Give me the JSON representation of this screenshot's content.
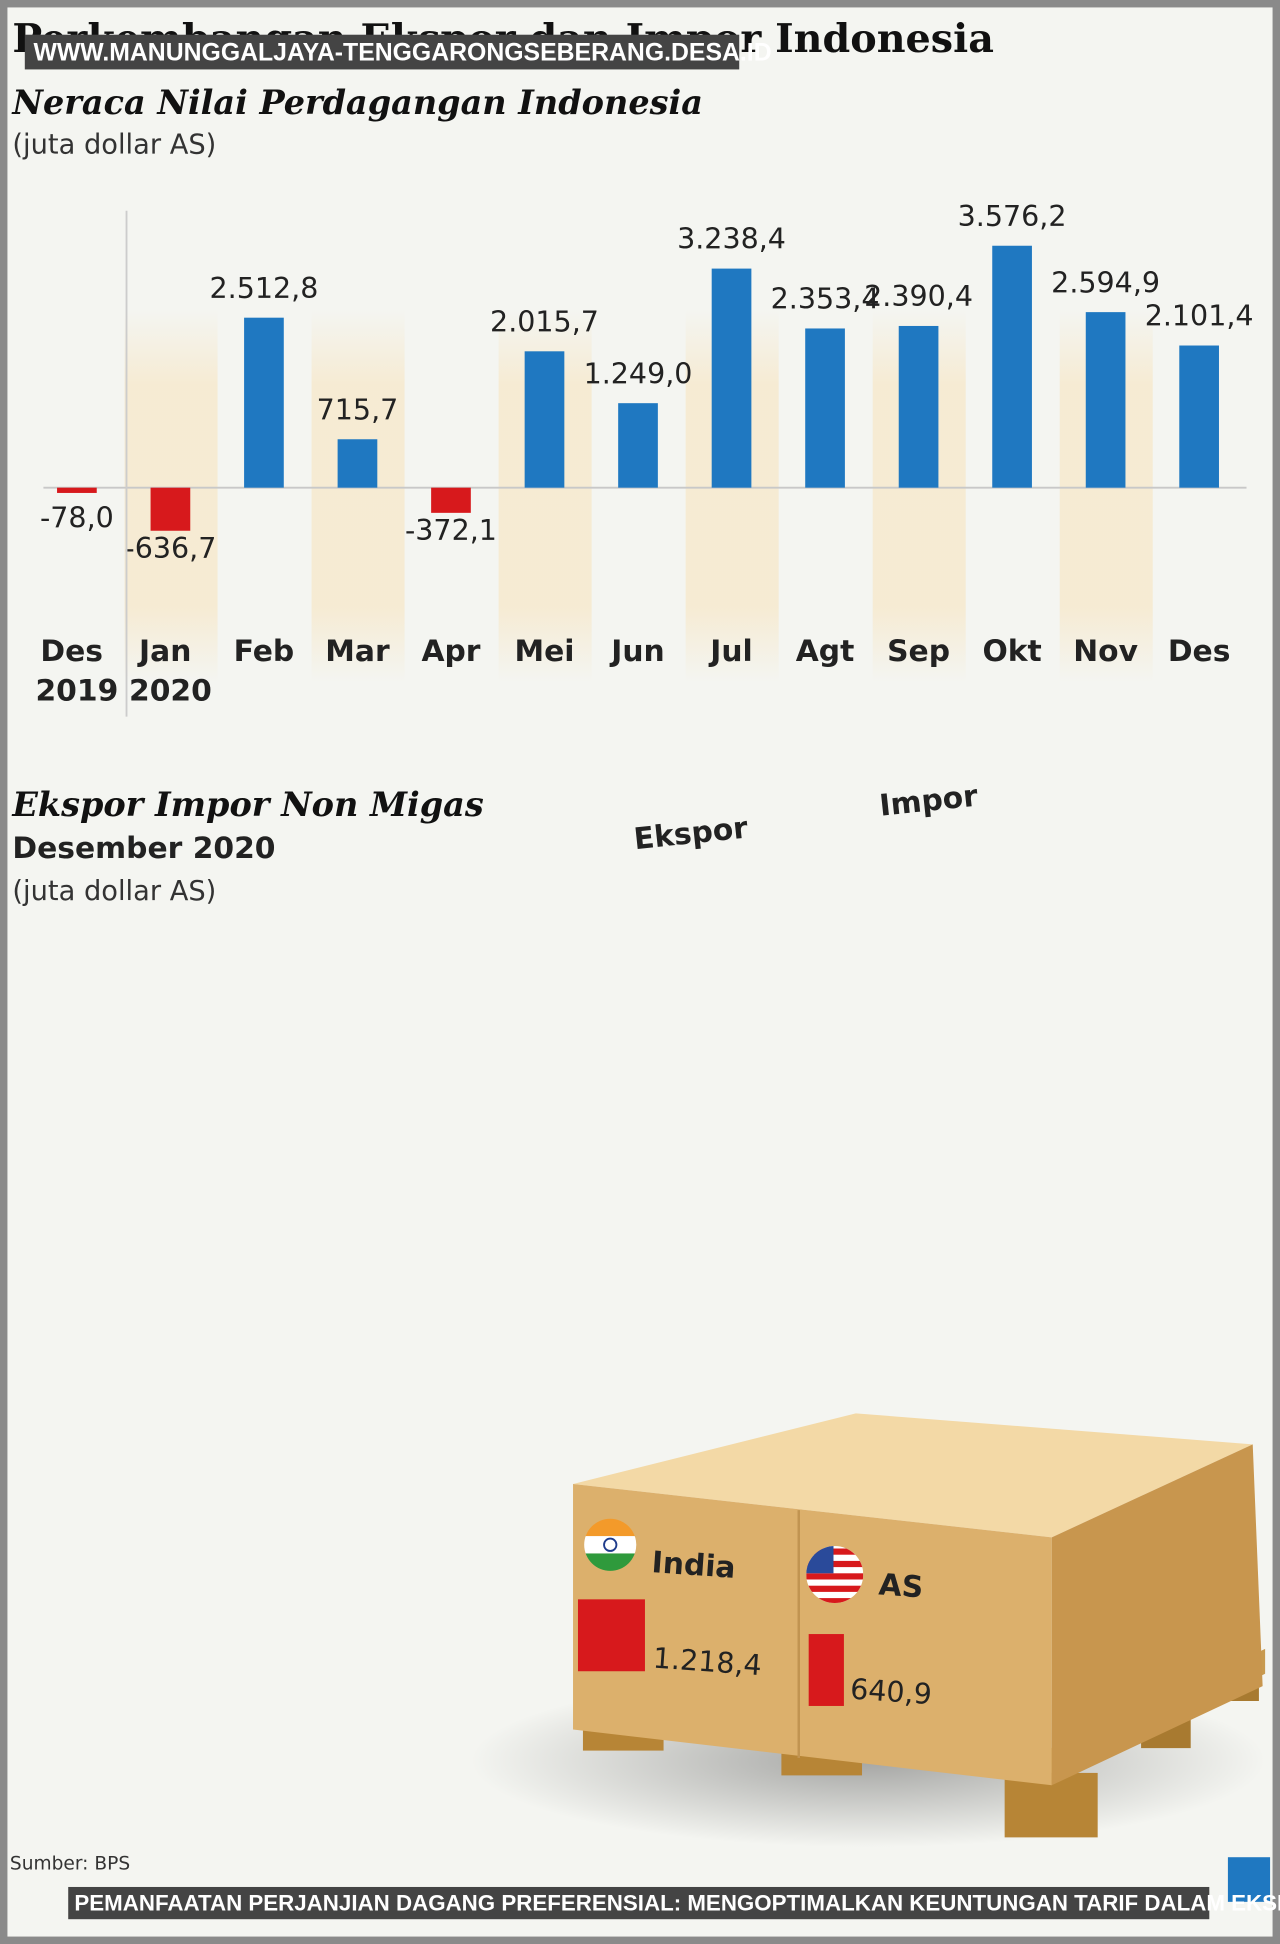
{
  "title": "Perkembangan Ekspor dan Impor Indonesia",
  "watermark": "WWW.MANUNGGALJAYA-TENGGARONGSEBERANG.DESA.ID",
  "caption": "PEMANFAATAN PERJANJIAN DAGANG PREFERENSIAL: MENGOPTIMALKAN KEUNTUNGAN TARIF DALAM EKSPOR",
  "source": "Sumber: BPS",
  "chart_data": [
    {
      "type": "bar",
      "title": "Neraca Nilai Perdagangan Indonesia",
      "subtitle": "(juta dollar AS)",
      "categories": [
        "Des 2019",
        "Jan 2020",
        "Feb",
        "Mar",
        "Apr",
        "Mei",
        "Jun",
        "Jul",
        "Agt",
        "Sep",
        "Okt",
        "Nov",
        "Des"
      ],
      "values": [
        -78.0,
        -636.7,
        2512.8,
        715.7,
        -372.1,
        2015.7,
        1249.0,
        3238.4,
        2353.4,
        2390.4,
        3576.2,
        2594.9,
        2101.4
      ],
      "value_labels": [
        "-78,0",
        "-636,7",
        "2.512,8",
        "715,7",
        "-372,1",
        "2.015,7",
        "1.249,0",
        "3.238,4",
        "2.353,4",
        "2.390,4",
        "3.576,2",
        "2.594,9",
        "2.101,4"
      ],
      "colors": {
        "positive": "#1f78c1",
        "negative": "#d7191c"
      },
      "ylim": [
        -800,
        3800
      ]
    },
    {
      "type": "pictogram",
      "title": "Ekspor Impor Non Migas",
      "subtitle": "Desember 2020",
      "unit": "(juta dollar AS)",
      "labels": [
        "Ekspor",
        "Impor"
      ],
      "categories": [
        "India",
        "AS"
      ],
      "values": [
        1218.4,
        640.9
      ],
      "value_labels": [
        "1.218,4",
        "640,9"
      ],
      "color": "#d7191c"
    }
  ]
}
